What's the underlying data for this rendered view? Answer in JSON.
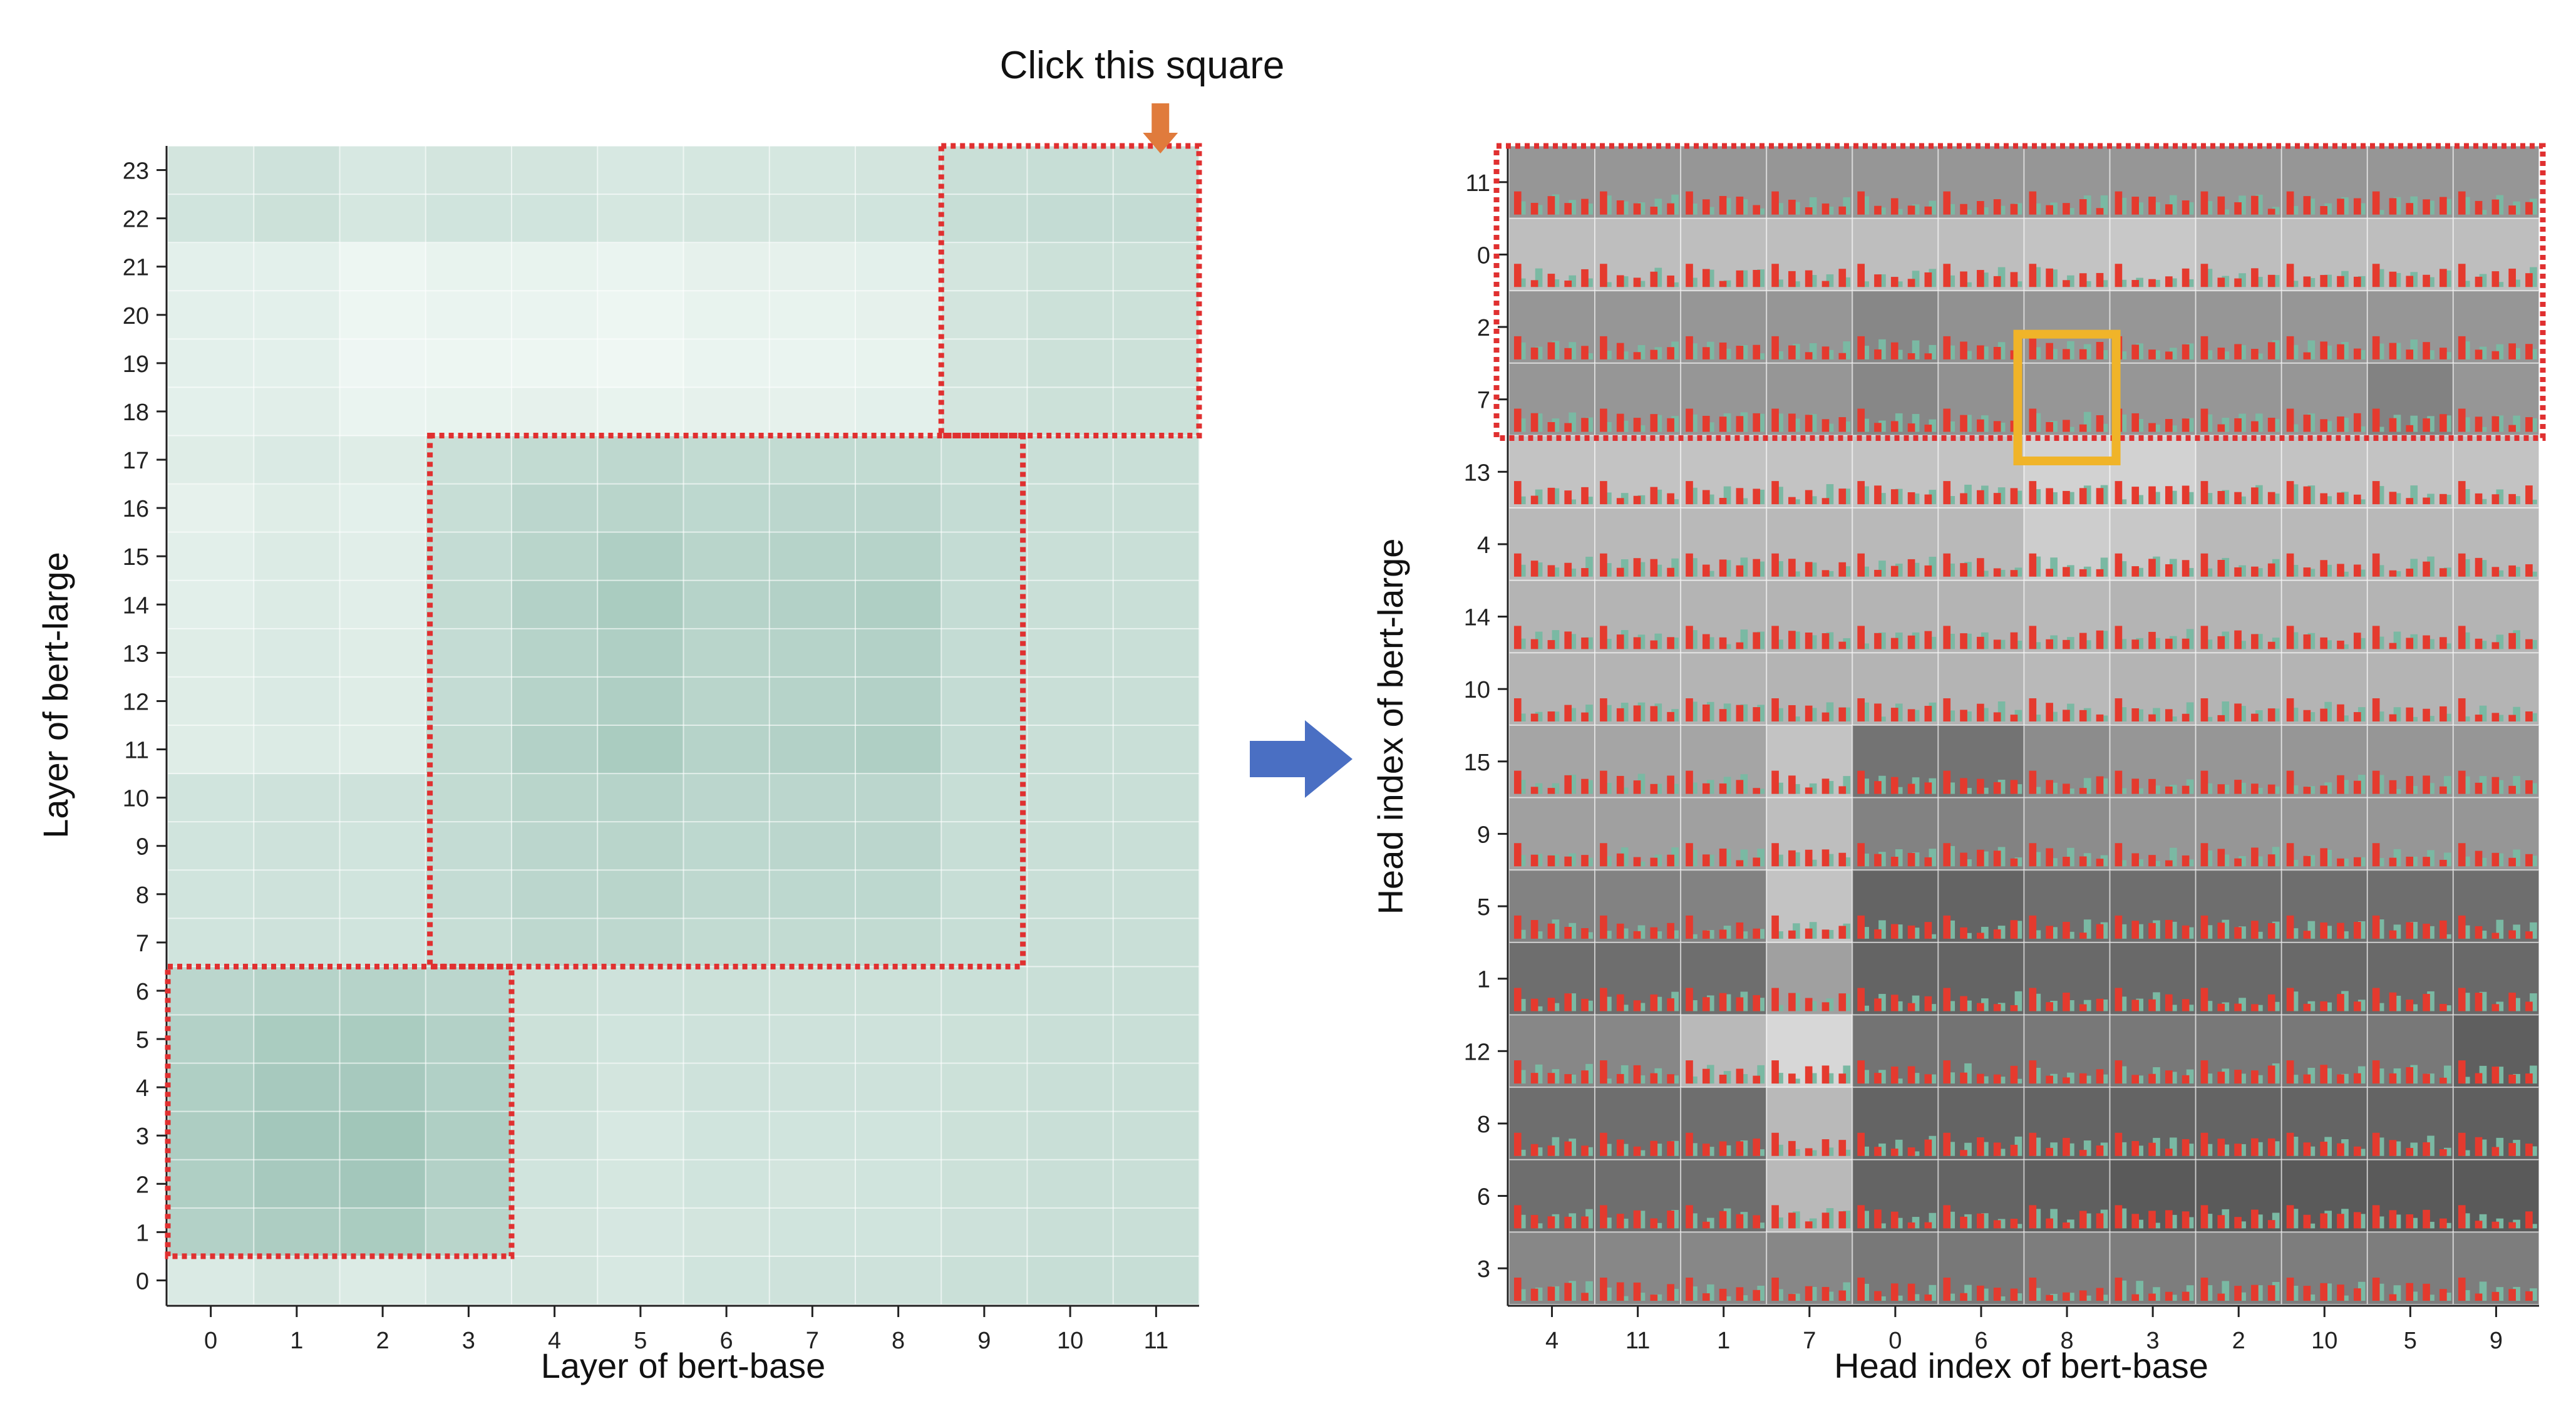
{
  "annotation": {
    "text": "Click this square",
    "arrow_color": "#e07b3c",
    "transition_arrow_color": "#4a6fc3",
    "dotted_box_color": "#e03030",
    "selection_box_color": "#f0b429"
  },
  "chart_data": [
    {
      "type": "heatmap",
      "title": "",
      "xlabel": "Layer of bert-base",
      "ylabel": "Layer of bert-large",
      "x_categories": [
        "0",
        "1",
        "2",
        "3",
        "4",
        "5",
        "6",
        "7",
        "8",
        "9",
        "10",
        "11"
      ],
      "y_categories": [
        "0",
        "1",
        "2",
        "3",
        "4",
        "5",
        "6",
        "7",
        "8",
        "9",
        "10",
        "11",
        "12",
        "13",
        "14",
        "15",
        "16",
        "17",
        "18",
        "19",
        "20",
        "21",
        "22",
        "23"
      ],
      "value_scale": [
        0,
        1
      ],
      "color_low": "#f4faf7",
      "color_high": "#7daf9f",
      "highlight_regions": [
        {
          "x_range": [
            "0",
            "3"
          ],
          "y_range": [
            "1",
            "6"
          ]
        },
        {
          "x_range": [
            "3",
            "9"
          ],
          "y_range": [
            "7",
            "17"
          ]
        },
        {
          "x_range": [
            "9",
            "11"
          ],
          "y_range": [
            "18",
            "23"
          ]
        }
      ],
      "values": [
        [
          0.22,
          0.28,
          0.2,
          0.25,
          0.28,
          0.24,
          0.3,
          0.32,
          0.32,
          0.35,
          0.38,
          0.38
        ],
        [
          0.55,
          0.6,
          0.62,
          0.5,
          0.28,
          0.25,
          0.28,
          0.3,
          0.3,
          0.33,
          0.36,
          0.36
        ],
        [
          0.58,
          0.65,
          0.68,
          0.55,
          0.3,
          0.26,
          0.3,
          0.28,
          0.3,
          0.34,
          0.36,
          0.36
        ],
        [
          0.6,
          0.68,
          0.7,
          0.58,
          0.32,
          0.24,
          0.3,
          0.3,
          0.3,
          0.34,
          0.36,
          0.36
        ],
        [
          0.58,
          0.65,
          0.65,
          0.56,
          0.34,
          0.28,
          0.32,
          0.32,
          0.32,
          0.34,
          0.36,
          0.36
        ],
        [
          0.55,
          0.62,
          0.62,
          0.55,
          0.34,
          0.3,
          0.32,
          0.32,
          0.32,
          0.34,
          0.36,
          0.36
        ],
        [
          0.48,
          0.52,
          0.52,
          0.48,
          0.34,
          0.32,
          0.34,
          0.34,
          0.34,
          0.35,
          0.36,
          0.36
        ],
        [
          0.3,
          0.32,
          0.3,
          0.38,
          0.45,
          0.45,
          0.42,
          0.42,
          0.42,
          0.38,
          0.36,
          0.36
        ],
        [
          0.3,
          0.32,
          0.3,
          0.4,
          0.48,
          0.5,
          0.45,
          0.46,
          0.46,
          0.38,
          0.36,
          0.36
        ],
        [
          0.3,
          0.32,
          0.3,
          0.4,
          0.48,
          0.5,
          0.46,
          0.48,
          0.48,
          0.38,
          0.36,
          0.36
        ],
        [
          0.3,
          0.32,
          0.32,
          0.42,
          0.5,
          0.52,
          0.48,
          0.48,
          0.48,
          0.38,
          0.36,
          0.36
        ],
        [
          0.18,
          0.2,
          0.18,
          0.42,
          0.55,
          0.62,
          0.52,
          0.55,
          0.58,
          0.4,
          0.36,
          0.36
        ],
        [
          0.18,
          0.22,
          0.18,
          0.4,
          0.52,
          0.58,
          0.5,
          0.52,
          0.55,
          0.4,
          0.36,
          0.36
        ],
        [
          0.18,
          0.22,
          0.18,
          0.4,
          0.52,
          0.58,
          0.5,
          0.52,
          0.55,
          0.4,
          0.36,
          0.36
        ],
        [
          0.15,
          0.2,
          0.16,
          0.42,
          0.55,
          0.62,
          0.52,
          0.55,
          0.58,
          0.4,
          0.36,
          0.36
        ],
        [
          0.15,
          0.2,
          0.16,
          0.4,
          0.5,
          0.58,
          0.5,
          0.52,
          0.52,
          0.4,
          0.36,
          0.36
        ],
        [
          0.12,
          0.18,
          0.14,
          0.38,
          0.48,
          0.5,
          0.46,
          0.48,
          0.48,
          0.4,
          0.36,
          0.36
        ],
        [
          0.18,
          0.22,
          0.18,
          0.35,
          0.42,
          0.45,
          0.42,
          0.42,
          0.42,
          0.38,
          0.36,
          0.36
        ],
        [
          0.14,
          0.16,
          0.08,
          0.1,
          0.12,
          0.1,
          0.12,
          0.12,
          0.14,
          0.28,
          0.34,
          0.34
        ],
        [
          0.14,
          0.14,
          0.05,
          0.06,
          0.06,
          0.04,
          0.08,
          0.08,
          0.1,
          0.28,
          0.34,
          0.34
        ],
        [
          0.14,
          0.14,
          0.06,
          0.08,
          0.08,
          0.06,
          0.1,
          0.1,
          0.12,
          0.28,
          0.34,
          0.34
        ],
        [
          0.14,
          0.14,
          0.06,
          0.1,
          0.1,
          0.08,
          0.12,
          0.12,
          0.14,
          0.28,
          0.34,
          0.34
        ],
        [
          0.3,
          0.34,
          0.26,
          0.3,
          0.3,
          0.26,
          0.28,
          0.28,
          0.3,
          0.38,
          0.4,
          0.4
        ],
        [
          0.28,
          0.32,
          0.24,
          0.28,
          0.28,
          0.24,
          0.26,
          0.26,
          0.28,
          0.36,
          0.38,
          0.38
        ]
      ]
    },
    {
      "type": "heatmap",
      "title": "",
      "xlabel": "Head index of bert-base",
      "ylabel": "Head index of bert-large",
      "x_categories": [
        "4",
        "11",
        "1",
        "7",
        "0",
        "6",
        "8",
        "3",
        "2",
        "10",
        "5",
        "9"
      ],
      "y_categories": [
        "11",
        "0",
        "2",
        "7",
        "13",
        "4",
        "14",
        "10",
        "15",
        "9",
        "5",
        "1",
        "12",
        "8",
        "6",
        "3"
      ],
      "note": "each cell shows a small bar glyph (red and teal bars) over a grey background whose shade encodes similarity",
      "bar_colors": [
        "#e53a2e",
        "#7ab9a3"
      ],
      "highlight_regions": [
        {
          "x_range": [
            "4",
            "9"
          ],
          "y_range": [
            "11",
            "7"
          ]
        }
      ],
      "selected_cell": {
        "x": "8",
        "y_range": [
          "2",
          "7"
        ]
      },
      "row_gray_levels": [
        [
          150,
          150,
          150,
          150,
          150,
          150,
          150,
          150,
          150,
          150,
          150,
          150
        ],
        [
          190,
          190,
          190,
          190,
          190,
          190,
          195,
          200,
          190,
          190,
          190,
          190
        ],
        [
          150,
          150,
          150,
          150,
          135,
          145,
          150,
          150,
          150,
          150,
          150,
          150
        ],
        [
          150,
          150,
          150,
          150,
          135,
          145,
          150,
          150,
          150,
          150,
          130,
          150
        ],
        [
          195,
          195,
          195,
          195,
          195,
          195,
          210,
          210,
          195,
          195,
          195,
          195
        ],
        [
          185,
          185,
          185,
          185,
          185,
          185,
          205,
          200,
          185,
          185,
          185,
          185
        ],
        [
          180,
          180,
          180,
          180,
          180,
          180,
          185,
          180,
          180,
          180,
          180,
          180
        ],
        [
          180,
          180,
          180,
          180,
          180,
          180,
          185,
          180,
          180,
          180,
          180,
          180
        ],
        [
          165,
          165,
          165,
          195,
          115,
          115,
          140,
          150,
          150,
          150,
          150,
          150
        ],
        [
          160,
          160,
          160,
          190,
          130,
          130,
          140,
          150,
          150,
          150,
          150,
          150
        ],
        [
          130,
          130,
          130,
          195,
          100,
          100,
          110,
          110,
          110,
          110,
          110,
          110
        ],
        [
          110,
          110,
          110,
          160,
          100,
          100,
          105,
          105,
          105,
          105,
          105,
          105
        ],
        [
          135,
          135,
          185,
          215,
          115,
          115,
          120,
          120,
          120,
          120,
          120,
          95
        ],
        [
          110,
          110,
          110,
          185,
          100,
          100,
          100,
          100,
          100,
          100,
          100,
          95
        ],
        [
          110,
          110,
          110,
          185,
          100,
          100,
          95,
          90,
          90,
          90,
          90,
          90
        ],
        [
          135,
          135,
          135,
          135,
          120,
          120,
          125,
          125,
          125,
          125,
          125,
          125
        ]
      ]
    }
  ]
}
